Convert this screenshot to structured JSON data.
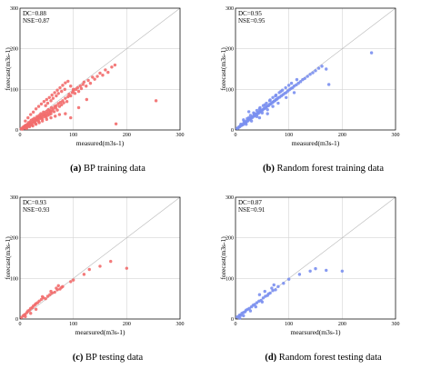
{
  "chart_data": [
    {
      "type": "scatter",
      "panel_letter": "(a)",
      "caption": "BP training data",
      "xlabel": "measured(m3s-1)",
      "ylabel": "forecast(m3s-1)",
      "xlim": [
        0,
        300
      ],
      "ylim": [
        0,
        300
      ],
      "xticks": [
        "0",
        "100",
        "200",
        "300"
      ],
      "yticks": [
        "0",
        "100",
        "200",
        "300"
      ],
      "stats": [
        "DC=0.88",
        "NSE=0.87"
      ],
      "grid": true,
      "diagonal": true,
      "color": "#f26b6b",
      "points": [
        [
          2,
          3
        ],
        [
          4,
          2
        ],
        [
          5,
          6
        ],
        [
          6,
          4
        ],
        [
          7,
          8
        ],
        [
          8,
          5
        ],
        [
          9,
          10
        ],
        [
          10,
          7
        ],
        [
          11,
          12
        ],
        [
          12,
          9
        ],
        [
          13,
          6
        ],
        [
          14,
          14
        ],
        [
          15,
          10
        ],
        [
          16,
          18
        ],
        [
          17,
          13
        ],
        [
          18,
          11
        ],
        [
          19,
          20
        ],
        [
          20,
          15
        ],
        [
          21,
          24
        ],
        [
          22,
          17
        ],
        [
          23,
          12
        ],
        [
          24,
          26
        ],
        [
          25,
          19
        ],
        [
          26,
          22
        ],
        [
          27,
          29
        ],
        [
          28,
          20
        ],
        [
          29,
          16
        ],
        [
          30,
          27
        ],
        [
          31,
          24
        ],
        [
          32,
          33
        ],
        [
          33,
          25
        ],
        [
          34,
          30
        ],
        [
          35,
          21
        ],
        [
          36,
          36
        ],
        [
          37,
          28
        ],
        [
          38,
          32
        ],
        [
          39,
          40
        ],
        [
          40,
          30
        ],
        [
          41,
          35
        ],
        [
          42,
          27
        ],
        [
          43,
          38
        ],
        [
          44,
          44
        ],
        [
          45,
          33
        ],
        [
          46,
          37
        ],
        [
          47,
          42
        ],
        [
          48,
          35
        ],
        [
          49,
          31
        ],
        [
          50,
          46
        ],
        [
          51,
          40
        ],
        [
          52,
          36
        ],
        [
          53,
          50
        ],
        [
          54,
          43
        ],
        [
          55,
          38
        ],
        [
          56,
          49
        ],
        [
          57,
          45
        ],
        [
          58,
          40
        ],
        [
          59,
          55
        ],
        [
          60,
          47
        ],
        [
          62,
          52
        ],
        [
          64,
          45
        ],
        [
          65,
          58
        ],
        [
          67,
          54
        ],
        [
          68,
          60
        ],
        [
          70,
          49
        ],
        [
          72,
          65
        ],
        [
          74,
          58
        ],
        [
          76,
          68
        ],
        [
          78,
          62
        ],
        [
          80,
          72
        ],
        [
          82,
          67
        ],
        [
          85,
          78
        ],
        [
          88,
          70
        ],
        [
          90,
          82
        ],
        [
          92,
          88
        ],
        [
          95,
          84
        ],
        [
          98,
          92
        ],
        [
          100,
          96
        ],
        [
          103,
          90
        ],
        [
          105,
          100
        ],
        [
          108,
          104
        ],
        [
          110,
          95
        ],
        [
          113,
          108
        ],
        [
          115,
          102
        ],
        [
          118,
          112
        ],
        [
          120,
          118
        ],
        [
          124,
          108
        ],
        [
          128,
          122
        ],
        [
          132,
          115
        ],
        [
          136,
          130
        ],
        [
          140,
          125
        ],
        [
          145,
          132
        ],
        [
          150,
          140
        ],
        [
          155,
          135
        ],
        [
          160,
          148
        ],
        [
          165,
          142
        ],
        [
          172,
          155
        ],
        [
          178,
          160
        ],
        [
          10,
          22
        ],
        [
          15,
          30
        ],
        [
          20,
          38
        ],
        [
          25,
          44
        ],
        [
          30,
          52
        ],
        [
          35,
          58
        ],
        [
          40,
          64
        ],
        [
          45,
          70
        ],
        [
          50,
          75
        ],
        [
          55,
          80
        ],
        [
          60,
          86
        ],
        [
          65,
          92
        ],
        [
          70,
          98
        ],
        [
          75,
          104
        ],
        [
          80,
          110
        ],
        [
          85,
          116
        ],
        [
          90,
          120
        ],
        [
          95,
          108
        ],
        [
          100,
          100
        ],
        [
          48,
          60
        ],
        [
          52,
          66
        ],
        [
          58,
          72
        ],
        [
          62,
          78
        ],
        [
          68,
          84
        ],
        [
          72,
          90
        ],
        [
          78,
          95
        ],
        [
          84,
          100
        ],
        [
          12,
          4
        ],
        [
          18,
          8
        ],
        [
          24,
          10
        ],
        [
          30,
          14
        ],
        [
          36,
          18
        ],
        [
          42,
          22
        ],
        [
          50,
          26
        ],
        [
          58,
          30
        ],
        [
          66,
          34
        ],
        [
          74,
          38
        ],
        [
          85,
          40
        ],
        [
          95,
          30
        ],
        [
          110,
          55
        ],
        [
          125,
          75
        ],
        [
          180,
          15
        ],
        [
          255,
          72
        ]
      ]
    },
    {
      "type": "scatter",
      "panel_letter": "(b)",
      "caption": "Random forest training data",
      "xlabel": "measured(m3s-1)",
      "ylabel": "forecast(m3s-1)",
      "xlim": [
        0,
        300
      ],
      "ylim": [
        0,
        300
      ],
      "xticks": [
        "0",
        "100",
        "200",
        "300"
      ],
      "yticks": [
        "0",
        "100",
        "200",
        "300"
      ],
      "stats": [
        "DC=0.95",
        "NSE=0.95"
      ],
      "grid": true,
      "diagonal": true,
      "color": "#7a8ff0",
      "points": [
        [
          3,
          4
        ],
        [
          5,
          5
        ],
        [
          6,
          7
        ],
        [
          8,
          8
        ],
        [
          9,
          10
        ],
        [
          11,
          11
        ],
        [
          12,
          13
        ],
        [
          14,
          13
        ],
        [
          15,
          16
        ],
        [
          17,
          16
        ],
        [
          18,
          19
        ],
        [
          20,
          19
        ],
        [
          21,
          22
        ],
        [
          23,
          22
        ],
        [
          24,
          25
        ],
        [
          26,
          25
        ],
        [
          27,
          28
        ],
        [
          29,
          28
        ],
        [
          30,
          31
        ],
        [
          32,
          31
        ],
        [
          33,
          34
        ],
        [
          35,
          34
        ],
        [
          36,
          37
        ],
        [
          38,
          36
        ],
        [
          39,
          40
        ],
        [
          41,
          39
        ],
        [
          42,
          43
        ],
        [
          44,
          42
        ],
        [
          45,
          46
        ],
        [
          47,
          45
        ],
        [
          48,
          49
        ],
        [
          50,
          48
        ],
        [
          52,
          51
        ],
        [
          54,
          53
        ],
        [
          56,
          54
        ],
        [
          58,
          57
        ],
        [
          60,
          59
        ],
        [
          62,
          60
        ],
        [
          64,
          63
        ],
        [
          66,
          64
        ],
        [
          68,
          67
        ],
        [
          70,
          68
        ],
        [
          72,
          71
        ],
        [
          74,
          72
        ],
        [
          76,
          75
        ],
        [
          78,
          76
        ],
        [
          80,
          79
        ],
        [
          83,
          81
        ],
        [
          86,
          84
        ],
        [
          89,
          87
        ],
        [
          92,
          90
        ],
        [
          95,
          92
        ],
        [
          98,
          96
        ],
        [
          101,
          99
        ],
        [
          104,
          102
        ],
        [
          107,
          104
        ],
        [
          110,
          108
        ],
        [
          114,
          111
        ],
        [
          118,
          115
        ],
        [
          122,
          119
        ],
        [
          126,
          124
        ],
        [
          130,
          127
        ],
        [
          135,
          132
        ],
        [
          140,
          137
        ],
        [
          145,
          141
        ],
        [
          150,
          146
        ],
        [
          156,
          152
        ],
        [
          162,
          157
        ],
        [
          170,
          150
        ],
        [
          175,
          112
        ],
        [
          255,
          190
        ],
        [
          10,
          14
        ],
        [
          16,
          22
        ],
        [
          22,
          28
        ],
        [
          28,
          36
        ],
        [
          34,
          42
        ],
        [
          40,
          48
        ],
        [
          46,
          55
        ],
        [
          52,
          60
        ],
        [
          58,
          66
        ],
        [
          64,
          72
        ],
        [
          70,
          80
        ],
        [
          76,
          86
        ],
        [
          82,
          92
        ],
        [
          88,
          98
        ],
        [
          94,
          104
        ],
        [
          100,
          110
        ],
        [
          20,
          14
        ],
        [
          30,
          22
        ],
        [
          40,
          33
        ],
        [
          50,
          42
        ],
        [
          60,
          50
        ],
        [
          70,
          58
        ],
        [
          80,
          66
        ],
        [
          95,
          80
        ],
        [
          110,
          92
        ],
        [
          25,
          30
        ],
        [
          35,
          40
        ],
        [
          45,
          52
        ],
        [
          55,
          62
        ],
        [
          65,
          74
        ],
        [
          75,
          84
        ],
        [
          85,
          95
        ],
        [
          105,
          115
        ],
        [
          115,
          124
        ],
        [
          25,
          45
        ],
        [
          15,
          25
        ],
        [
          60,
          40
        ],
        [
          45,
          30
        ]
      ]
    },
    {
      "type": "scatter",
      "panel_letter": "(c)",
      "caption": "BP testing data",
      "xlabel": "mearsured(m3s-1)",
      "ylabel": "forecast(m3s-1)",
      "xlim": [
        0,
        300
      ],
      "ylim": [
        0,
        300
      ],
      "xticks": [
        "0",
        "100",
        "200",
        "300"
      ],
      "yticks": [
        "0",
        "100",
        "200",
        "300"
      ],
      "stats": [
        "DC=0.93",
        "NSE=0.93"
      ],
      "grid": true,
      "diagonal": true,
      "color": "#f26b6b",
      "points": [
        [
          3,
          4
        ],
        [
          6,
          8
        ],
        [
          8,
          10
        ],
        [
          10,
          12
        ],
        [
          13,
          16
        ],
        [
          15,
          20
        ],
        [
          18,
          22
        ],
        [
          20,
          26
        ],
        [
          23,
          28
        ],
        [
          25,
          32
        ],
        [
          28,
          35
        ],
        [
          30,
          38
        ],
        [
          33,
          40
        ],
        [
          36,
          44
        ],
        [
          40,
          48
        ],
        [
          44,
          52
        ],
        [
          48,
          50
        ],
        [
          52,
          56
        ],
        [
          56,
          60
        ],
        [
          60,
          64
        ],
        [
          65,
          66
        ],
        [
          70,
          72
        ],
        [
          75,
          74
        ],
        [
          80,
          80
        ],
        [
          42,
          55
        ],
        [
          58,
          68
        ],
        [
          68,
          76
        ],
        [
          72,
          82
        ],
        [
          78,
          78
        ],
        [
          95,
          92
        ],
        [
          100,
          96
        ],
        [
          120,
          110
        ],
        [
          130,
          122
        ],
        [
          150,
          130
        ],
        [
          170,
          142
        ],
        [
          200,
          125
        ],
        [
          10,
          6
        ],
        [
          20,
          14
        ],
        [
          30,
          24
        ]
      ]
    },
    {
      "type": "scatter",
      "panel_letter": "(d)",
      "caption": "Random forest testing data",
      "xlabel": "mearsured(m3s-1)",
      "ylabel": "forecast(m3s-1)",
      "xlim": [
        0,
        300
      ],
      "ylim": [
        0,
        300
      ],
      "xticks": [
        "0",
        "100",
        "200",
        "300"
      ],
      "yticks": [
        "0",
        "100",
        "200",
        "300"
      ],
      "stats": [
        "DC=0.87",
        "NSE=0.91"
      ],
      "grid": true,
      "diagonal": true,
      "color": "#7a8ff0",
      "points": [
        [
          3,
          5
        ],
        [
          6,
          7
        ],
        [
          8,
          10
        ],
        [
          10,
          9
        ],
        [
          12,
          14
        ],
        [
          15,
          16
        ],
        [
          18,
          18
        ],
        [
          20,
          22
        ],
        [
          23,
          24
        ],
        [
          26,
          26
        ],
        [
          30,
          30
        ],
        [
          33,
          34
        ],
        [
          36,
          36
        ],
        [
          40,
          40
        ],
        [
          44,
          44
        ],
        [
          48,
          46
        ],
        [
          52,
          52
        ],
        [
          56,
          56
        ],
        [
          60,
          58
        ],
        [
          65,
          64
        ],
        [
          70,
          70
        ],
        [
          75,
          72
        ],
        [
          80,
          80
        ],
        [
          90,
          88
        ],
        [
          100,
          98
        ],
        [
          45,
          60
        ],
        [
          55,
          68
        ],
        [
          62,
          62
        ],
        [
          68,
          76
        ],
        [
          72,
          84
        ],
        [
          38,
          30
        ],
        [
          50,
          42
        ],
        [
          28,
          20
        ],
        [
          120,
          110
        ],
        [
          140,
          118
        ],
        [
          150,
          124
        ],
        [
          170,
          120
        ],
        [
          200,
          118
        ],
        [
          8,
          2
        ],
        [
          15,
          8
        ]
      ]
    }
  ]
}
